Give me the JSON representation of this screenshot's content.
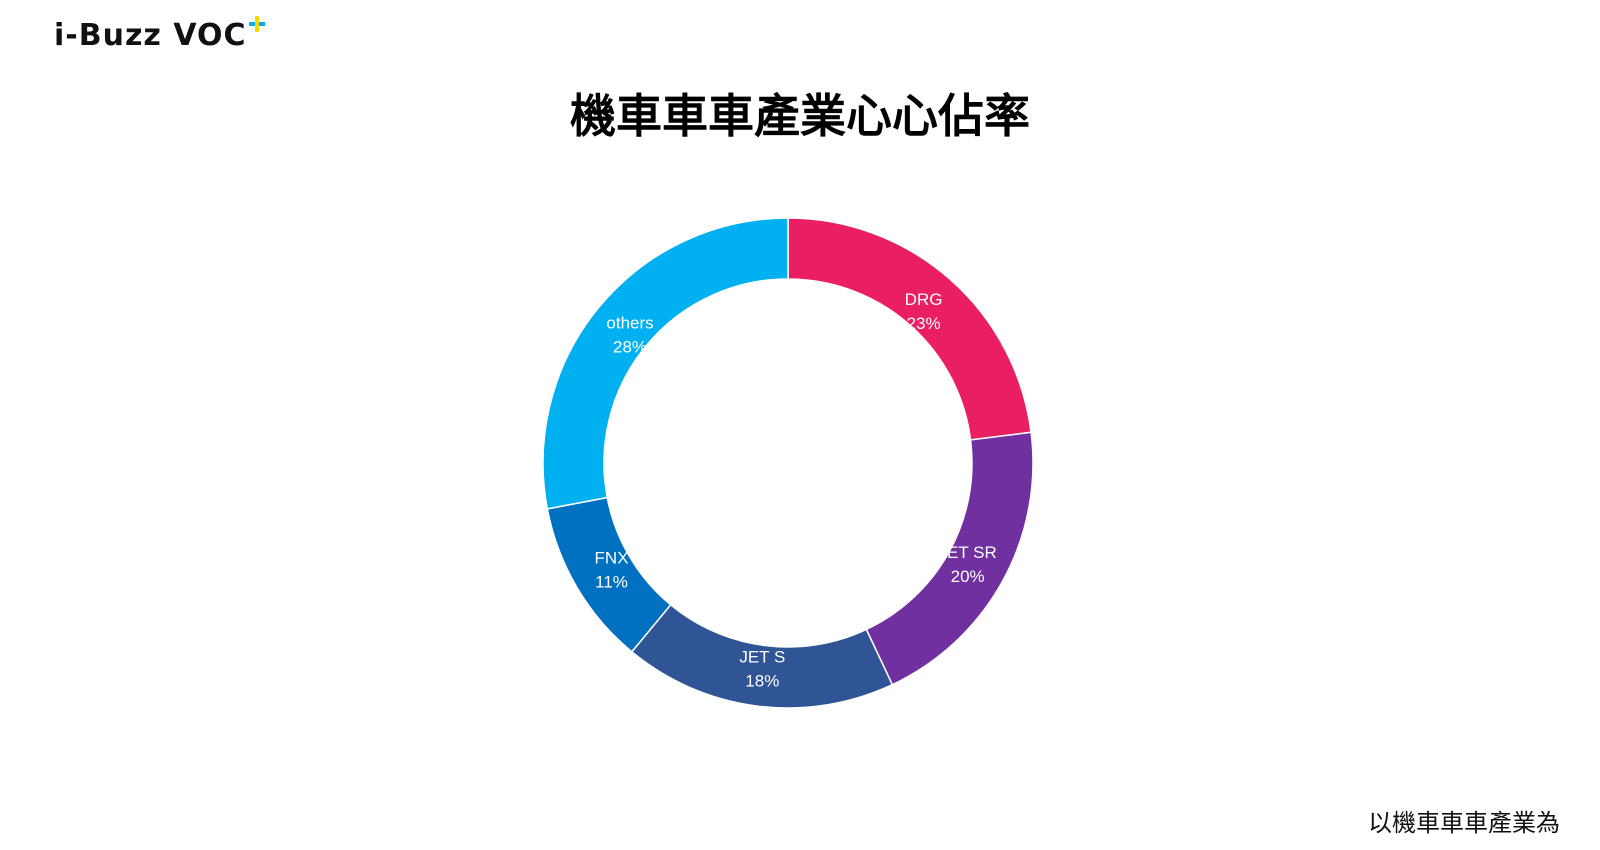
{
  "logo": {
    "text": "i-Buzz VOC",
    "plus_colors": [
      "#00aeef",
      "#ffd600"
    ]
  },
  "title": "機車車車產業心心佔率",
  "footnote": "以機車車車產業為",
  "chart_data": {
    "type": "pie",
    "variant": "donut",
    "title": "機車車車產業心心佔率",
    "slices": [
      {
        "label": "DRG",
        "value": 23,
        "value_label": "23%",
        "color": "#ea1f63"
      },
      {
        "label": "JET SR",
        "value": 20,
        "value_label": "20%",
        "color": "#7030a0"
      },
      {
        "label": "JET S",
        "value": 18,
        "value_label": "18%",
        "color": "#2f5597"
      },
      {
        "label": "FNX",
        "value": 11,
        "value_label": "11%",
        "color": "#0070c0"
      },
      {
        "label": "others",
        "value": 28,
        "value_label": "28%",
        "color": "#00b0f0"
      }
    ],
    "start_angle": "12 o'clock",
    "direction": "clockwise",
    "legend": "none"
  }
}
